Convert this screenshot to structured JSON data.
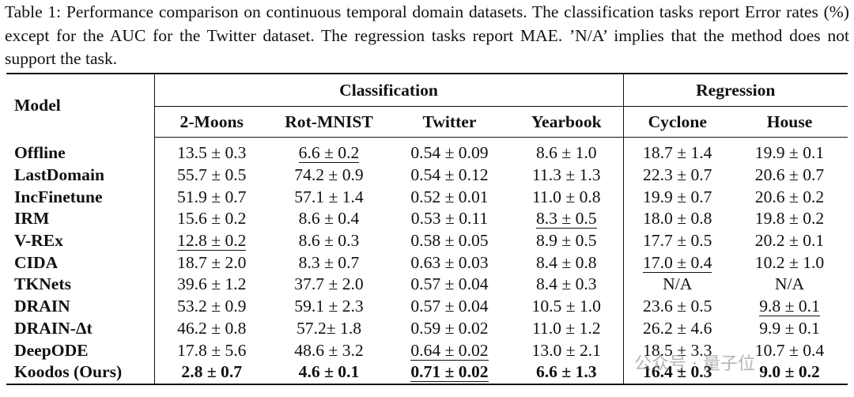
{
  "caption": "Table 1: Performance comparison on continuous temporal domain datasets. The classification tasks report Error rates (%) except for the AUC for the Twitter dataset. The regression tasks report MAE. ’N/A’ implies that the method does not support the task.",
  "table": {
    "model_header": "Model",
    "groups": [
      {
        "label": "Classification",
        "columns": [
          "2-Moons",
          "Rot-MNIST",
          "Twitter",
          "Yearbook"
        ]
      },
      {
        "label": "Regression",
        "columns": [
          "Cyclone",
          "House"
        ]
      }
    ],
    "rows": [
      {
        "model": "Offline",
        "cells": [
          "13.5 ± 0.3",
          "6.6 ± 0.2",
          "0.54 ± 0.09",
          "8.6 ± 1.0",
          "18.7 ± 1.4",
          "19.9 ± 0.1"
        ],
        "underlined": [
          1
        ]
      },
      {
        "model": "LastDomain",
        "cells": [
          "55.7 ± 0.5",
          "74.2 ± 0.9",
          "0.54 ± 0.12",
          "11.3 ± 1.3",
          "22.3 ± 0.7",
          "20.6 ± 0.7"
        ],
        "underlined": []
      },
      {
        "model": "IncFinetune",
        "cells": [
          "51.9 ± 0.7",
          "57.1 ± 1.4",
          "0.52 ± 0.01",
          "11.0 ± 0.8",
          "19.9 ± 0.7",
          "20.6 ± 0.2"
        ],
        "underlined": []
      },
      {
        "model": "IRM",
        "cells": [
          "15.6 ± 0.2",
          "8.6 ± 0.4",
          "0.53 ± 0.11",
          "8.3 ± 0.5",
          "18.0 ± 0.8",
          "19.8 ± 0.2"
        ],
        "underlined": [
          3
        ]
      },
      {
        "model": "V-REx",
        "cells": [
          "12.8 ± 0.2",
          "8.6 ± 0.3",
          "0.58 ± 0.05",
          "8.9 ± 0.5",
          "17.7 ± 0.5",
          "20.2 ± 0.1"
        ],
        "underlined": [
          0
        ]
      },
      {
        "model": "CIDA",
        "cells": [
          "18.7 ± 2.0",
          "8.3 ± 0.7",
          "0.63 ± 0.03",
          "8.4 ± 0.8",
          "17.0 ± 0.4",
          "10.2 ± 1.0"
        ],
        "underlined": [
          4
        ]
      },
      {
        "model": "TKNets",
        "cells": [
          "39.6 ± 1.2",
          "37.7 ± 2.0",
          "0.57 ± 0.04",
          "8.4 ± 0.3",
          "N/A",
          "N/A"
        ],
        "underlined": []
      },
      {
        "model": "DRAIN",
        "cells": [
          "53.2 ± 0.9",
          "59.1 ± 2.3",
          "0.57 ± 0.04",
          "10.5 ± 1.0",
          "23.6 ± 0.5",
          "9.8 ± 0.1"
        ],
        "underlined": [
          5
        ]
      },
      {
        "model": "DRAIN-Δt",
        "cells": [
          "46.2 ± 0.8",
          "57.2± 1.8",
          "0.59 ± 0.02",
          "11.0 ± 1.2",
          "26.2 ± 4.6",
          "9.9 ± 0.1"
        ],
        "underlined": []
      },
      {
        "model": "DeepODE",
        "cells": [
          "17.8 ± 5.6",
          "48.6 ± 3.2",
          "0.64 ± 0.02",
          "13.0 ± 2.1",
          "18.5 ± 3.3",
          "10.7 ± 0.4"
        ],
        "underlined": [
          2
        ]
      },
      {
        "model": "Koodos (Ours)",
        "cells": [
          "2.8 ± 0.7",
          "4.6 ± 0.1",
          "0.71 ± 0.02",
          "6.6 ± 1.3",
          "16.4 ± 0.3",
          "9.0 ± 0.2"
        ],
        "underlined": [
          2
        ],
        "bold": true
      }
    ]
  },
  "watermark": "公众号 · 量子位"
}
